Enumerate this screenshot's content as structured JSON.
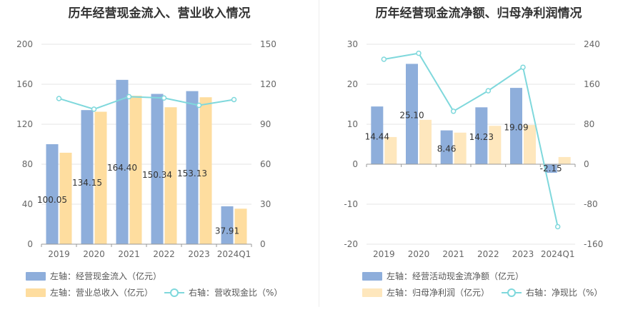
{
  "colors": {
    "bar_a": "#8eaedb",
    "bar_b": "#fedd9f",
    "line": "#7fd8dc",
    "grid": "#e6e6e6",
    "axis": "#999999"
  },
  "chart_data": [
    {
      "type": "bar",
      "title": "历年经营现金流入、营业收入情况",
      "categories": [
        "2019",
        "2020",
        "2021",
        "2022",
        "2023",
        "2024Q1"
      ],
      "y_left": {
        "ticks": [
          "0",
          "40",
          "80",
          "120",
          "160",
          "200"
        ],
        "ylim": [
          0,
          200
        ]
      },
      "y_right": {
        "ticks": [
          "0",
          "30",
          "60",
          "90",
          "120",
          "150"
        ],
        "ylim": [
          0,
          150
        ]
      },
      "series": [
        {
          "name": "左轴：经营现金流入（亿元）",
          "axis": "left",
          "type": "bar",
          "color": "#8eaedb",
          "values": [
            100.05,
            134.15,
            164.4,
            150.34,
            153.13,
            37.91
          ],
          "labels": [
            "100.05",
            "134.15",
            "164.40",
            "150.34",
            "153.13",
            "37.91"
          ]
        },
        {
          "name": "左轴：营业总收入（亿元）",
          "axis": "left",
          "type": "bar",
          "color": "#fedd9f",
          "values": [
            91.5,
            132.5,
            148.5,
            137.0,
            147.0,
            35.5
          ]
        },
        {
          "name": "右轴：营收现金比（%）",
          "axis": "right",
          "type": "line",
          "color": "#7fd8dc",
          "values": [
            109.3,
            101.3,
            110.7,
            109.7,
            104.2,
            108.5
          ]
        }
      ],
      "grid": true,
      "legend": "bottom-left"
    },
    {
      "type": "bar",
      "title": "历年经营现金流净额、归母净利润情况",
      "categories": [
        "2019",
        "2020",
        "2021",
        "2022",
        "2023",
        "2024Q1"
      ],
      "y_left": {
        "ticks": [
          "-20",
          "-10",
          "0",
          "10",
          "20",
          "30"
        ],
        "ylim": [
          -20,
          30
        ]
      },
      "y_right": {
        "ticks": [
          "-160",
          "-80",
          "0",
          "80",
          "160",
          "240"
        ],
        "ylim": [
          -160,
          240
        ]
      },
      "series": [
        {
          "name": "左轴：经营活动现金流净额（亿元）",
          "axis": "left",
          "type": "bar",
          "color": "#8eaedb",
          "values": [
            14.44,
            25.1,
            8.46,
            14.23,
            19.09,
            -2.15
          ],
          "labels": [
            "14.44",
            "25.10",
            "8.46",
            "14.23",
            "19.09",
            "-2.15"
          ]
        },
        {
          "name": "左轴：归母净利润（亿元）",
          "axis": "left",
          "type": "bar",
          "color": "#fedd9f",
          "values": [
            6.8,
            11.1,
            7.9,
            9.6,
            9.8,
            1.8
          ]
        },
        {
          "name": "右轴：净现比（%）",
          "axis": "right",
          "type": "line",
          "color": "#7fd8dc",
          "values": [
            210,
            222,
            106,
            147,
            194,
            -125
          ]
        }
      ],
      "grid": true,
      "legend": "bottom-left"
    }
  ]
}
